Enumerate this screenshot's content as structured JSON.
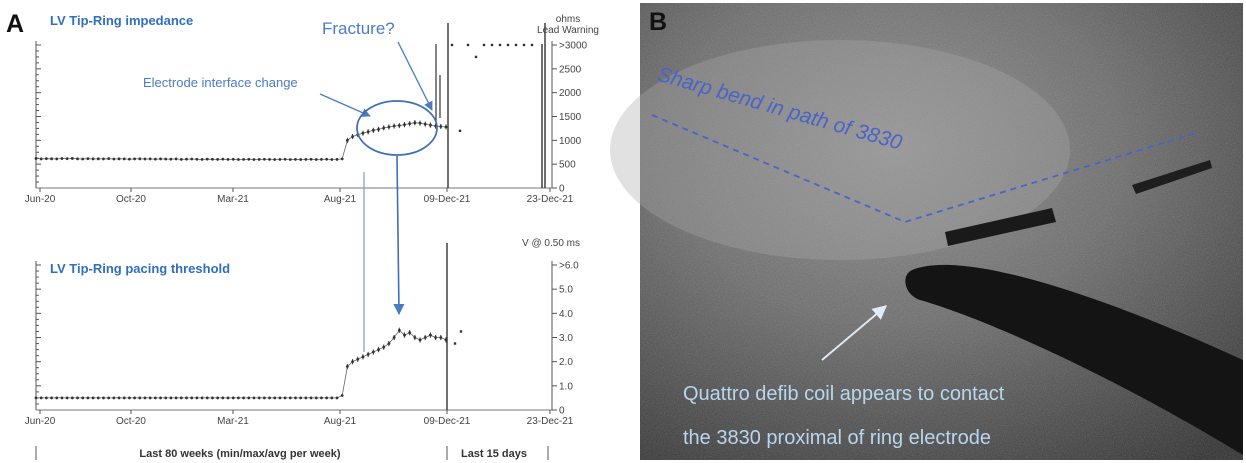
{
  "panel_a": {
    "letter": "A",
    "footer_left": "Last 80 weeks (min/max/avg per week)",
    "footer_right": "Last 15 days",
    "annotations": {
      "fracture": "Fracture?",
      "electrode_change": "Electrode interface change"
    }
  },
  "panel_b": {
    "letter": "B",
    "bend_label": "Sharp bend in path of 3830",
    "caption_line1": "Quattro defib coil appears to contact",
    "caption_line2": "the 3830 proximal of ring electrode"
  },
  "colors": {
    "title": "#2f6fbe",
    "annotation": "#4a7cc2",
    "data": "#333333"
  },
  "chart_data": [
    {
      "type": "line",
      "title": "LV Tip-Ring impedance",
      "unit_label": "ohms",
      "warning_label": "Lead Warning",
      "x_ticks": [
        "Jun-20",
        "Oct-20",
        "Mar-21",
        "Aug-21",
        "09-Dec-21",
        "23-Dec-21"
      ],
      "y_ticks": [
        "0",
        "500",
        "1000",
        "1500",
        "2000",
        "2500",
        ">3000"
      ],
      "ylim": [
        0,
        3000
      ],
      "series": [
        {
          "x": [
            1,
            2,
            3,
            4,
            5,
            6,
            7,
            8,
            9,
            10,
            11,
            12,
            13,
            14,
            15,
            16,
            17,
            18,
            19,
            20,
            21,
            22,
            23,
            24,
            25,
            26,
            27,
            28,
            29,
            30,
            31,
            32,
            33,
            34,
            35,
            36,
            37,
            38,
            39,
            40,
            41,
            42,
            43,
            44,
            45,
            46,
            47,
            48,
            49,
            50,
            51,
            52,
            53,
            54,
            55,
            56,
            57,
            58,
            59,
            60,
            61,
            62,
            63,
            64,
            65,
            66,
            67,
            68,
            69,
            70,
            71,
            72,
            73,
            74,
            75,
            76,
            77,
            78,
            79,
            80
          ],
          "values": [
            620,
            610,
            615,
            612,
            610,
            618,
            615,
            620,
            612,
            608,
            615,
            610,
            612,
            610,
            615,
            608,
            612,
            610,
            605,
            610,
            612,
            608,
            610,
            605,
            610,
            608,
            605,
            610,
            600,
            605,
            608,
            603,
            600,
            605,
            602,
            600,
            605,
            600,
            602,
            598,
            600,
            602,
            598,
            600,
            602,
            600,
            598,
            600,
            602,
            598,
            600,
            598,
            600,
            602,
            598,
            600,
            602,
            598,
            600,
            610,
            1000,
            1080,
            1120,
            1150,
            1180,
            1210,
            1230,
            1260,
            1280,
            1300,
            1310,
            1330,
            1350,
            1370,
            1360,
            1340,
            1320,
            1300,
            1290,
            1280
          ]
        },
        {
          "name": "Last 15 days",
          "values": [
            3000,
            1200,
            3000,
            2750,
            3000,
            3000,
            3000,
            3000,
            3000,
            3000,
            3000
          ]
        }
      ]
    },
    {
      "type": "line",
      "title": "LV Tip-Ring pacing threshold",
      "unit_label": "V @ 0.50 ms",
      "x_ticks": [
        "Jun-20",
        "Oct-20",
        "Mar-21",
        "Aug-21",
        "09-Dec-21",
        "23-Dec-21"
      ],
      "y_ticks": [
        "0",
        "1.0",
        "2.0",
        "3.0",
        "4.0",
        "5.0",
        ">6.0"
      ],
      "ylim": [
        0,
        6
      ],
      "series": [
        {
          "x": [
            1,
            2,
            3,
            4,
            5,
            6,
            7,
            8,
            9,
            10,
            11,
            12,
            13,
            14,
            15,
            16,
            17,
            18,
            19,
            20,
            21,
            22,
            23,
            24,
            25,
            26,
            27,
            28,
            29,
            30,
            31,
            32,
            33,
            34,
            35,
            36,
            37,
            38,
            39,
            40,
            41,
            42,
            43,
            44,
            45,
            46,
            47,
            48,
            49,
            50,
            51,
            52,
            53,
            54,
            55,
            56,
            57,
            58,
            59,
            60,
            61,
            62,
            63,
            64,
            65,
            66,
            67,
            68,
            69,
            70,
            71,
            72,
            73,
            74,
            75,
            76,
            77,
            78,
            79,
            80
          ],
          "values": [
            0.5,
            0.5,
            0.5,
            0.5,
            0.5,
            0.5,
            0.5,
            0.5,
            0.5,
            0.5,
            0.5,
            0.5,
            0.5,
            0.5,
            0.5,
            0.5,
            0.5,
            0.5,
            0.5,
            0.5,
            0.5,
            0.5,
            0.5,
            0.5,
            0.5,
            0.5,
            0.5,
            0.5,
            0.5,
            0.5,
            0.5,
            0.5,
            0.5,
            0.5,
            0.5,
            0.5,
            0.5,
            0.5,
            0.5,
            0.5,
            0.5,
            0.5,
            0.5,
            0.5,
            0.5,
            0.5,
            0.5,
            0.5,
            0.5,
            0.5,
            0.5,
            0.5,
            0.5,
            0.5,
            0.5,
            0.5,
            0.5,
            0.5,
            0.5,
            0.6,
            1.8,
            2.0,
            2.1,
            2.2,
            2.3,
            2.4,
            2.5,
            2.6,
            2.75,
            3.0,
            3.3,
            3.1,
            3.2,
            3.0,
            2.9,
            3.0,
            3.1,
            3.0,
            3.0,
            2.9
          ]
        },
        {
          "name": "Last 15 days",
          "values": [
            2.75,
            3.25
          ]
        }
      ]
    }
  ]
}
